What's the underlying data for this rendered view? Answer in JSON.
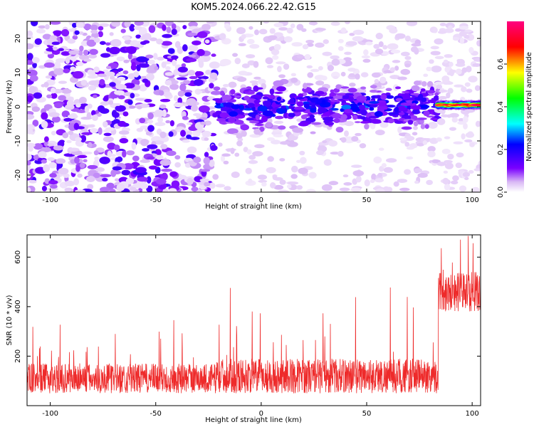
{
  "title": "KOM5.2024.066.22.42.G15",
  "chart_data": [
    {
      "type": "heatmap",
      "xlabel": "Height of straight line (km)",
      "ylabel": "Frequency (Hz)",
      "xlim": [
        -111,
        104
      ],
      "ylim": [
        -25,
        25
      ],
      "xticks": [
        -100,
        -50,
        0,
        50,
        100
      ],
      "yticks": [
        -20,
        -10,
        0,
        10,
        20
      ],
      "colorbar": {
        "label": "Normalized spectral amplitude",
        "range": [
          0.0,
          0.8
        ],
        "ticks": [
          0.0,
          0.2,
          0.4,
          0.6
        ],
        "colormap": [
          "#ffffff",
          "#d9b8f5",
          "#7a00ff",
          "#0000ff",
          "#00ffff",
          "#00ff00",
          "#ffff00",
          "#ff0000",
          "#ff0080"
        ]
      },
      "regions": [
        {
          "x": [
            -111,
            -22
          ],
          "description": "broadband noise",
          "typical_amplitude": 0.1
        },
        {
          "x": [
            -22,
            84
          ],
          "center_frequency": 0,
          "bandwidth_hz": 10,
          "typical_amplitude": 0.15
        },
        {
          "x": [
            84,
            104
          ],
          "center_frequency": 0.5,
          "bandwidth_hz": 2,
          "typical_amplitude": 0.7
        }
      ]
    },
    {
      "type": "line",
      "xlabel": "Height of straight line (km)",
      "ylabel": "SNR (10 * v/v)",
      "xlim": [
        -111,
        104
      ],
      "ylim": [
        0,
        690
      ],
      "xticks": [
        -100,
        -50,
        0,
        50,
        100
      ],
      "yticks": [
        200,
        400,
        600
      ],
      "color": "#ee2a2a",
      "segments": [
        {
          "x": [
            -111,
            -22
          ],
          "baseline": 110,
          "spread": 60,
          "max": 370
        },
        {
          "x": [
            -22,
            84
          ],
          "baseline": 120,
          "spread": 70,
          "max": 490
        },
        {
          "x": [
            84,
            104
          ],
          "baseline": 460,
          "spread": 80,
          "max": 690
        }
      ]
    }
  ]
}
